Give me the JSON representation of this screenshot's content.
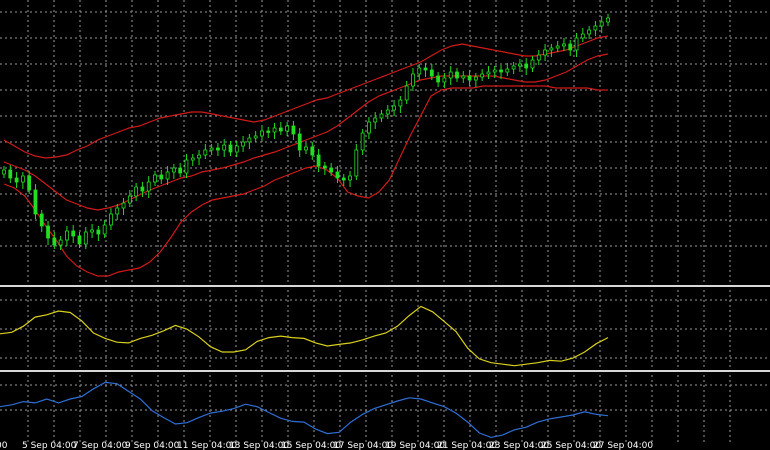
{
  "colors": {
    "background": "#000000",
    "grid": "#9a9a9a",
    "separator": "#d8d8d8",
    "candle": "#22dd22",
    "bands": "#d11a1a",
    "indicator1": "#d8d01e",
    "indicator2": "#2f6fd6",
    "axis_text": "#ffffff"
  },
  "chart_data": [
    {
      "type": "line",
      "description_role": "price candles with Bollinger bands",
      "x_labels": [
        "00",
        "5 Sep 04:00",
        "7 Sep 04:00",
        "9 Sep 04:00",
        "11 Sep 04:00",
        "13 Sep 04:00",
        "15 Sep 04:00",
        "17 Sep 04:00",
        "19 Sep 04:00",
        "21 Sep 04:00",
        "23 Sep 04:00",
        "25 Sep 04:00",
        "27 Sep 04:00"
      ],
      "close": [
        170,
        178,
        182,
        176,
        190,
        214,
        226,
        238,
        245,
        240,
        231,
        236,
        244,
        232,
        230,
        234,
        225,
        214,
        208,
        203,
        196,
        187,
        191,
        182,
        175,
        179,
        172,
        168,
        173,
        160,
        158,
        155,
        150,
        148,
        150,
        145,
        152,
        146,
        142,
        138,
        136,
        131,
        132,
        128,
        131,
        126,
        134,
        150,
        147,
        155,
        166,
        168,
        172,
        178,
        180,
        176,
        150,
        133,
        122,
        118,
        114,
        110,
        106,
        100,
        86,
        74,
        68,
        70,
        76,
        82,
        78,
        72,
        78,
        76,
        80,
        77,
        74,
        72,
        70,
        72,
        69,
        66,
        64,
        68,
        60,
        55,
        50,
        48,
        46,
        44,
        50,
        38,
        34,
        30,
        26,
        22,
        18
      ],
      "upper_band": [
        140,
        146,
        152,
        156,
        158,
        157,
        155,
        150,
        146,
        140,
        136,
        132,
        128,
        126,
        122,
        118,
        116,
        114,
        112,
        112,
        114,
        116,
        118,
        120,
        122,
        120,
        116,
        112,
        108,
        104,
        100,
        98,
        94,
        90,
        86,
        82,
        78,
        74,
        70,
        66,
        62,
        56,
        50,
        46,
        44,
        46,
        48,
        50,
        52,
        54,
        56,
        56,
        54,
        52,
        50,
        46,
        42,
        38,
        36
      ],
      "middle_band": [
        162,
        166,
        170,
        176,
        184,
        192,
        200,
        204,
        208,
        210,
        208,
        205,
        200,
        195,
        190,
        186,
        182,
        178,
        176,
        172,
        170,
        168,
        165,
        162,
        158,
        155,
        152,
        148,
        144,
        140,
        136,
        132,
        126,
        118,
        110,
        102,
        96,
        92,
        88,
        84,
        80,
        78,
        76,
        76,
        76,
        76,
        76,
        76,
        78,
        80,
        82,
        82,
        80,
        76,
        72,
        66,
        60,
        56,
        54
      ],
      "lower_band": [
        184,
        188,
        196,
        210,
        226,
        240,
        256,
        266,
        272,
        276,
        276,
        272,
        270,
        268,
        262,
        252,
        238,
        222,
        212,
        205,
        200,
        198,
        196,
        194,
        190,
        186,
        180,
        176,
        172,
        168,
        166,
        170,
        178,
        192,
        196,
        198,
        192,
        180,
        158,
        136,
        116,
        96,
        90,
        88,
        88,
        88,
        86,
        86,
        86,
        86,
        86,
        86,
        86,
        88,
        88,
        88,
        88,
        90,
        90
      ]
    },
    {
      "type": "line",
      "series": [
        {
          "values": [
            0.45,
            0.47,
            0.55,
            0.67,
            0.7,
            0.75,
            0.73,
            0.62,
            0.46,
            0.39,
            0.34,
            0.33,
            0.39,
            0.43,
            0.49,
            0.56,
            0.51,
            0.41,
            0.28,
            0.21,
            0.21,
            0.24,
            0.35,
            0.4,
            0.42,
            0.4,
            0.39,
            0.33,
            0.29,
            0.31,
            0.33,
            0.37,
            0.42,
            0.46,
            0.55,
            0.69,
            0.81,
            0.74,
            0.61,
            0.48,
            0.26,
            0.12,
            0.07,
            0.05,
            0.03,
            0.05,
            0.07,
            0.1,
            0.09,
            0.13,
            0.21,
            0.32,
            0.4
          ]
        }
      ]
    },
    {
      "type": "line",
      "series": [
        {
          "values": [
            0.52,
            0.55,
            0.6,
            0.58,
            0.64,
            0.58,
            0.64,
            0.68,
            0.8,
            0.9,
            0.88,
            0.76,
            0.64,
            0.46,
            0.35,
            0.25,
            0.27,
            0.35,
            0.42,
            0.45,
            0.49,
            0.56,
            0.52,
            0.43,
            0.34,
            0.29,
            0.28,
            0.17,
            0.1,
            0.12,
            0.28,
            0.4,
            0.49,
            0.55,
            0.61,
            0.66,
            0.64,
            0.58,
            0.52,
            0.42,
            0.28,
            0.11,
            0.04,
            0.08,
            0.16,
            0.2,
            0.28,
            0.33,
            0.36,
            0.39,
            0.44,
            0.4,
            0.38
          ]
        }
      ]
    }
  ]
}
